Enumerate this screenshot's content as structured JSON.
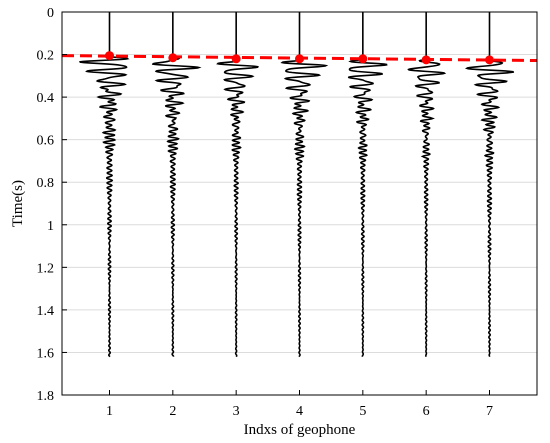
{
  "chart_data": {
    "type": "line",
    "title": "",
    "xlabel": "Indxs of geophone",
    "ylabel": "Time(s)",
    "xlim": [
      0.25,
      7.75
    ],
    "ylim": [
      0,
      1.8
    ],
    "y_reversed": true,
    "grid": "horizontal",
    "x_ticks": [
      "1",
      "2",
      "3",
      "4",
      "5",
      "6",
      "7"
    ],
    "y_ticks": [
      "0",
      "0.2",
      "0.4",
      "0.6",
      "0.8",
      "1",
      "1.2",
      "1.4",
      "1.6",
      "1.8"
    ],
    "traces": [
      {
        "geophone": 1,
        "first_arrival": 0.205,
        "t_end": 1.62,
        "main_amp": 0.55
      },
      {
        "geophone": 2,
        "first_arrival": 0.215,
        "t_end": 1.62,
        "main_amp": 0.5
      },
      {
        "geophone": 3,
        "first_arrival": 0.22,
        "t_end": 1.62,
        "main_amp": 0.42
      },
      {
        "geophone": 4,
        "first_arrival": 0.22,
        "t_end": 1.62,
        "main_amp": 0.48
      },
      {
        "geophone": 5,
        "first_arrival": 0.22,
        "t_end": 1.62,
        "main_amp": 0.45
      },
      {
        "geophone": 6,
        "first_arrival": 0.225,
        "t_end": 1.62,
        "main_amp": 0.4
      },
      {
        "geophone": 7,
        "first_arrival": 0.225,
        "t_end": 1.62,
        "main_amp": 0.5
      }
    ],
    "picks": [
      {
        "x": 1,
        "y": 0.205
      },
      {
        "x": 2,
        "y": 0.215
      },
      {
        "x": 3,
        "y": 0.22
      },
      {
        "x": 4,
        "y": 0.22
      },
      {
        "x": 5,
        "y": 0.22
      },
      {
        "x": 6,
        "y": 0.225
      },
      {
        "x": 7,
        "y": 0.225
      }
    ],
    "fit_line": {
      "x": [
        0.25,
        7.75
      ],
      "y": [
        0.205,
        0.228
      ]
    },
    "colors": {
      "trace": "#000000",
      "pick": "#ff0000",
      "fit": "#ff0000",
      "grid": "#dcdcdc"
    }
  }
}
